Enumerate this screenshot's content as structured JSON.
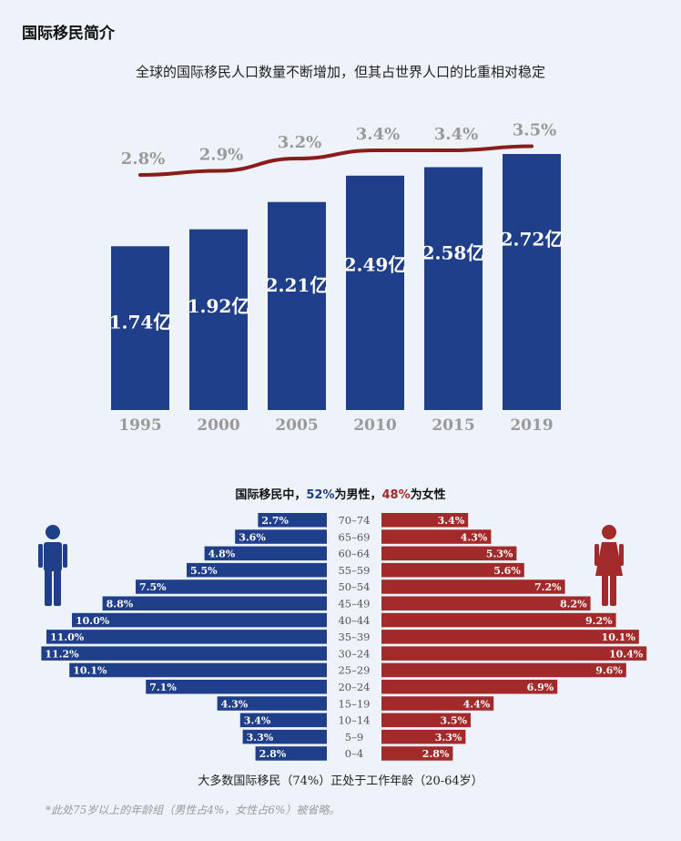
{
  "page_title": "国际移民简介",
  "colors": {
    "male": "#1f3f8a",
    "female": "#a22a2a",
    "share_line": "#8b1c1c",
    "tick": "#9a9a9a"
  },
  "chart_data": [
    {
      "type": "bar",
      "title": "全球的国际移民人口数量不断增加，但其占世界人口的比重相对稳定",
      "categories": [
        "1995",
        "2000",
        "2005",
        "2010",
        "2015",
        "2019"
      ],
      "series": [
        {
          "values": [
            1.74,
            1.92,
            2.21,
            2.49,
            2.58,
            2.72
          ],
          "labels": [
            "1.74亿",
            "1.92亿",
            "2.21亿",
            "2.49亿",
            "2.58亿",
            "2.72亿"
          ]
        },
        {
          "type": "line",
          "values": [
            2.8,
            2.9,
            3.2,
            3.4,
            3.4,
            3.5
          ],
          "labels": [
            "2.8%",
            "2.9%",
            "3.2%",
            "3.4%",
            "3.4%",
            "3.5%"
          ]
        }
      ]
    },
    {
      "type": "bar",
      "title_parts": {
        "prefix": "国际移民中，",
        "male_pct": "52%",
        "male_word": "为男性",
        "sep": "，",
        "female_pct": "48%",
        "female_word": "为女性"
      },
      "categories": [
        "70–74",
        "65–69",
        "60–64",
        "55–59",
        "50–54",
        "45–49",
        "40–44",
        "35–39",
        "30–24",
        "25–29",
        "20–24",
        "15–19",
        "10–14",
        "5–9",
        "0–4"
      ],
      "series": [
        {
          "values": [
            2.7,
            3.6,
            4.8,
            5.5,
            7.5,
            8.8,
            10.0,
            11.0,
            11.2,
            10.1,
            7.1,
            4.3,
            3.4,
            3.3,
            2.8
          ],
          "labels": [
            "2.7%",
            "3.6%",
            "4.8%",
            "5.5%",
            "7.5%",
            "8.8%",
            "10.0%",
            "11.0%",
            "11.2%",
            "10.1%",
            "7.1%",
            "4.3%",
            "3.4%",
            "3.3%",
            "2.8%"
          ]
        },
        {
          "values": [
            3.4,
            4.3,
            5.3,
            5.6,
            7.2,
            8.2,
            9.2,
            10.1,
            10.4,
            9.6,
            6.9,
            4.4,
            3.5,
            3.3,
            2.8
          ],
          "labels": [
            "3.4%",
            "4.3%",
            "5.3%",
            "5.6%",
            "7.2%",
            "8.2%",
            "9.2%",
            "10.1%",
            "10.4%",
            "9.6%",
            "6.9%",
            "4.4%",
            "3.5%",
            "3.3%",
            "2.8%"
          ]
        }
      ]
    }
  ],
  "working_age_note": "大多数国际移民（74%）正处于工作年龄（20-64岁）",
  "footnote": "*此处75岁以上的年龄组（男性占4%，女性占6%）被省略。",
  "icons": {
    "male": "male-person-icon",
    "female": "female-person-icon"
  }
}
